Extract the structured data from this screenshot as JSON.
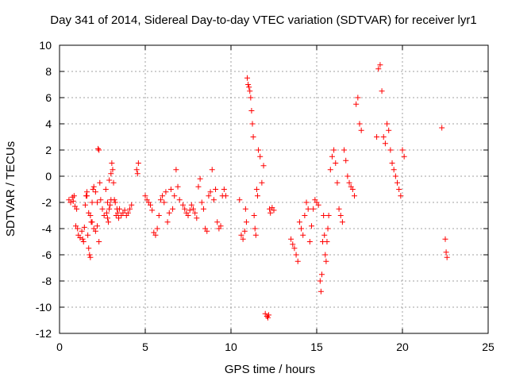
{
  "chart_data": {
    "type": "scatter",
    "title": "Day 341 of 2014, Sidereal Day-to-day VTEC variation (SDTVAR) for receiver lyr1",
    "xlabel": "GPS time / hours",
    "ylabel": "SDTVAR / TECUs",
    "xlim": [
      0,
      25
    ],
    "ylim": [
      -12,
      10
    ],
    "xticks": [
      0,
      5,
      10,
      15,
      20,
      25
    ],
    "yticks": [
      -12,
      -10,
      -8,
      -6,
      -4,
      -2,
      0,
      2,
      4,
      6,
      8,
      10
    ],
    "grid": true,
    "marker": "+",
    "marker_color": "#ff0000",
    "series": [
      {
        "name": "SDTVAR",
        "x": [
          0.55,
          0.65,
          0.75,
          0.85,
          0.95,
          1.05,
          0.8,
          0.9,
          1.0,
          1.1,
          1.2,
          1.3,
          1.35,
          1.4,
          1.45,
          1.5,
          1.55,
          1.6,
          1.65,
          1.7,
          1.75,
          1.8,
          1.85,
          1.9,
          1.95,
          2.0,
          1.6,
          1.7,
          1.8,
          1.9,
          2.0,
          2.1,
          2.2,
          2.3,
          2.1,
          2.2,
          2.25,
          2.3,
          2.35,
          2.4,
          2.5,
          2.6,
          2.7,
          2.8,
          2.9,
          3.0,
          2.75,
          2.8,
          2.85,
          2.9,
          2.95,
          3.0,
          3.05,
          3.1,
          3.15,
          3.2,
          3.25,
          3.3,
          3.35,
          3.4,
          3.45,
          3.5,
          3.6,
          3.7,
          3.8,
          3.9,
          4.0,
          4.1,
          4.2,
          4.5,
          4.55,
          4.6,
          5.0,
          5.1,
          5.2,
          5.3,
          5.4,
          5.5,
          5.6,
          5.7,
          5.8,
          5.9,
          6.0,
          6.1,
          6.2,
          6.3,
          6.4,
          6.5,
          6.6,
          6.7,
          6.8,
          6.9,
          7.0,
          7.2,
          7.3,
          7.4,
          7.5,
          7.6,
          7.7,
          7.8,
          7.9,
          8.0,
          8.1,
          8.2,
          8.3,
          8.4,
          8.5,
          8.6,
          8.7,
          8.8,
          8.9,
          9.0,
          9.1,
          9.2,
          9.3,
          9.4,
          9.5,
          9.6,
          9.7,
          10.5,
          10.6,
          10.7,
          10.8,
          10.85,
          10.9,
          10.95,
          11.0,
          11.05,
          11.1,
          11.15,
          11.2,
          11.25,
          11.3,
          11.35,
          11.4,
          11.45,
          11.5,
          11.55,
          11.6,
          11.7,
          11.8,
          11.9,
          12.0,
          12.1,
          12.15,
          12.2,
          12.25,
          12.3,
          12.4,
          12.5,
          13.5,
          13.6,
          13.7,
          13.8,
          13.9,
          14.0,
          14.1,
          14.2,
          14.3,
          14.4,
          14.5,
          14.6,
          14.7,
          14.8,
          14.9,
          15.0,
          15.1,
          15.2,
          15.25,
          15.3,
          15.35,
          15.4,
          15.45,
          15.5,
          15.55,
          15.6,
          15.65,
          15.7,
          15.8,
          15.9,
          16.0,
          16.1,
          16.2,
          16.3,
          16.4,
          16.5,
          16.6,
          16.7,
          16.8,
          16.9,
          17.0,
          17.1,
          17.2,
          17.3,
          17.4,
          17.5,
          17.6,
          18.5,
          18.6,
          18.7,
          18.8,
          18.9,
          19.0,
          19.1,
          19.2,
          19.3,
          19.4,
          19.5,
          19.6,
          19.7,
          19.8,
          19.9,
          20.0,
          20.1,
          22.3,
          22.5,
          22.55,
          22.6
        ],
        "y": [
          -1.8,
          -2.0,
          -1.6,
          -1.5,
          -3.8,
          -4.0,
          -1.9,
          -2.3,
          -2.5,
          -4.5,
          -4.7,
          -4.2,
          -4.8,
          -5.0,
          -3.9,
          -2.2,
          -1.5,
          -1.2,
          -4.5,
          -5.5,
          -6.0,
          -6.2,
          -3.5,
          -2.0,
          -1.0,
          -0.8,
          -1.5,
          -2.8,
          -3.0,
          -3.5,
          -4.0,
          -4.2,
          -3.8,
          -5.0,
          -1.2,
          -2.0,
          2.1,
          2.0,
          -0.5,
          -1.8,
          -2.5,
          -3.0,
          -1.0,
          -2.0,
          -0.3,
          0.2,
          -2.8,
          -3.2,
          -3.5,
          -2.5,
          -2.2,
          -1.8,
          1.0,
          0.5,
          -0.5,
          -1.8,
          -2.0,
          -3.0,
          -2.5,
          -2.8,
          -3.2,
          -2.5,
          -3.0,
          -2.8,
          -2.6,
          -3.0,
          -2.8,
          -2.5,
          -2.2,
          0.5,
          0.2,
          1.0,
          -1.5,
          -1.8,
          -2.0,
          -2.2,
          -2.6,
          -4.3,
          -4.5,
          -4.0,
          -3.0,
          -1.8,
          -1.5,
          -2.0,
          -1.2,
          -3.5,
          -2.8,
          -1.0,
          -2.5,
          -1.5,
          0.5,
          -0.8,
          -1.8,
          -2.2,
          -2.5,
          -2.8,
          -3.0,
          -2.6,
          -2.2,
          -2.5,
          -2.8,
          -3.2,
          -0.8,
          -0.2,
          -2.0,
          -2.5,
          -4.0,
          -4.2,
          -1.5,
          -1.2,
          0.5,
          -1.8,
          -1.0,
          -3.5,
          -4.0,
          -3.8,
          -1.5,
          -1.0,
          -1.5,
          -1.8,
          -4.5,
          -4.8,
          -4.2,
          -2.5,
          -3.5,
          7.5,
          7.0,
          6.8,
          6.5,
          6.0,
          5.0,
          4.0,
          3.0,
          -3.0,
          -4.0,
          -4.5,
          -1.0,
          -1.5,
          2.0,
          1.5,
          -0.5,
          0.8,
          -10.5,
          -10.7,
          -10.8,
          -10.6,
          -2.5,
          -2.8,
          -2.4,
          -2.6,
          -4.8,
          -5.2,
          -5.5,
          -6.0,
          -6.5,
          -3.5,
          -4.0,
          -4.5,
          -3.0,
          -2.0,
          -2.5,
          -5.0,
          -3.8,
          -2.5,
          -1.8,
          -2.0,
          -2.2,
          -8.0,
          -8.8,
          -7.5,
          -5.0,
          -3.0,
          -4.5,
          -6.0,
          -6.5,
          -5.0,
          -4.0,
          -3.0,
          0.5,
          1.5,
          2.0,
          1.0,
          -0.5,
          -2.5,
          -3.0,
          -3.5,
          2.0,
          1.2,
          0.0,
          -0.5,
          -0.8,
          -1.0,
          -1.5,
          5.5,
          6.0,
          4.0,
          3.5,
          3.0,
          8.2,
          8.5,
          6.5,
          3.0,
          2.5,
          4.0,
          3.5,
          2.0,
          1.0,
          0.5,
          0.0,
          -0.5,
          -1.0,
          -1.5,
          2.0,
          1.5,
          3.7,
          -4.8,
          -5.8,
          -6.2
        ]
      }
    ]
  }
}
